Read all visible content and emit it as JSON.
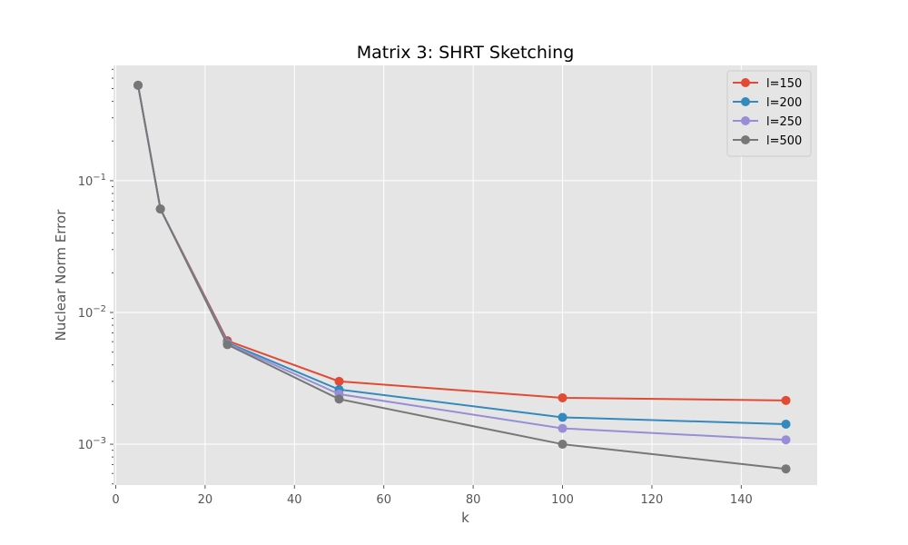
{
  "chart_data": {
    "type": "line",
    "title": "Matrix 3: SHRT Sketching",
    "xlabel": "k",
    "ylabel": "Nuclear Norm Error",
    "yscale": "log",
    "xlim": [
      -0.5,
      157
    ],
    "ylim": [
      0.00049,
      0.75
    ],
    "xticks": [
      0,
      20,
      40,
      60,
      80,
      100,
      120,
      140
    ],
    "yticks": [
      0.001,
      0.01,
      0.1
    ],
    "ytick_labels": [
      {
        "base": "10",
        "exp": "−3"
      },
      {
        "base": "10",
        "exp": "−2"
      },
      {
        "base": "10",
        "exp": "−1"
      }
    ],
    "grid": true,
    "legend_position": "top-right",
    "x": [
      5,
      10,
      25,
      50,
      100,
      150
    ],
    "series": [
      {
        "name": "l=150",
        "color": "#E24A33",
        "values": [
          0.53,
          0.061,
          0.0061,
          0.003,
          0.00225,
          0.00215
        ]
      },
      {
        "name": "l=200",
        "color": "#348ABD",
        "values": [
          0.53,
          0.061,
          0.0059,
          0.0026,
          0.0016,
          0.00142
        ]
      },
      {
        "name": "l=250",
        "color": "#988ED5",
        "values": [
          0.53,
          0.061,
          0.0058,
          0.0024,
          0.00132,
          0.00108
        ]
      },
      {
        "name": "l=500",
        "color": "#777777",
        "values": [
          0.53,
          0.061,
          0.0057,
          0.0022,
          0.001,
          0.00065
        ]
      }
    ]
  }
}
